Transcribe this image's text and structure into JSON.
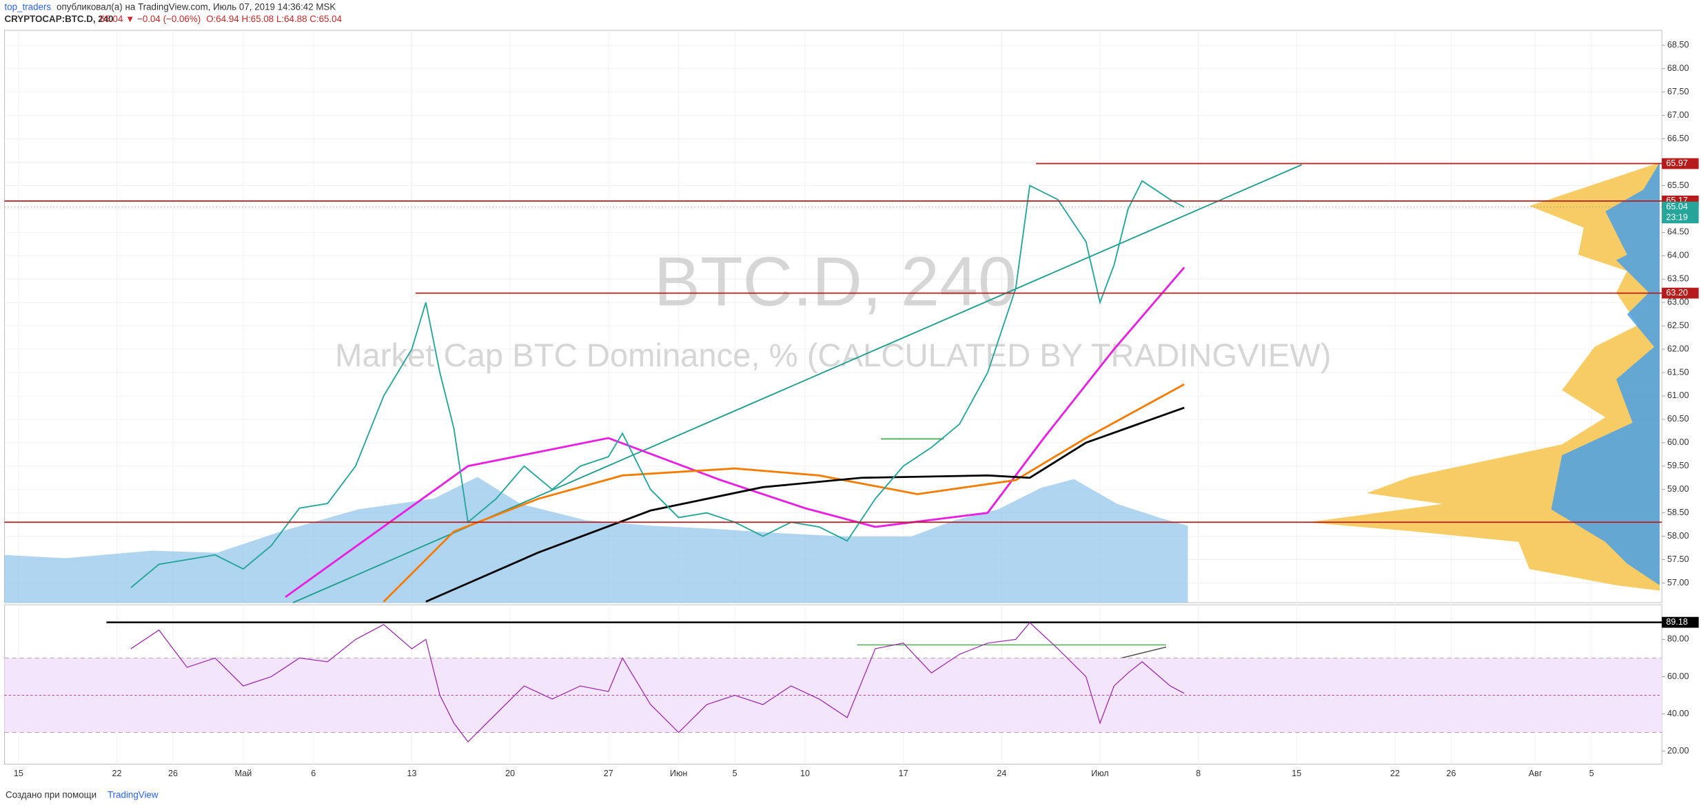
{
  "header": {
    "author": "top_traders",
    "published": "опубликовал(а) на TradingView.com, Июль 07, 2019 14:36:42 MSK",
    "symbol": "CRYPTOCAP:BTC.D, 240",
    "change": "65.04 ▼ −0.04 (−0.06%)",
    "ohlc": "O:64.94 H:65.08 L:64.88 C:65.04"
  },
  "footer": {
    "text": "Создано при помощи",
    "brand": "TradingView"
  },
  "chart_data": {
    "type": "line",
    "title": "BTC.D, 240",
    "subtitle": "Market Cap BTC Dominance, % (CALCULATED BY TRADINGVIEW)",
    "x": [
      "2019-04-23",
      "2019-04-25",
      "2019-04-27",
      "2019-04-29",
      "2019-05-01",
      "2019-05-03",
      "2019-05-05",
      "2019-05-07",
      "2019-05-09",
      "2019-05-11",
      "2019-05-13",
      "2019-05-14",
      "2019-05-15",
      "2019-05-16",
      "2019-05-17",
      "2019-05-19",
      "2019-05-21",
      "2019-05-23",
      "2019-05-25",
      "2019-05-27",
      "2019-05-28",
      "2019-05-30",
      "2019-06-01",
      "2019-06-03",
      "2019-06-05",
      "2019-06-07",
      "2019-06-09",
      "2019-06-11",
      "2019-06-13",
      "2019-06-15",
      "2019-06-17",
      "2019-06-19",
      "2019-06-21",
      "2019-06-23",
      "2019-06-25",
      "2019-06-26",
      "2019-06-28",
      "2019-06-30",
      "2019-07-01",
      "2019-07-02",
      "2019-07-03",
      "2019-07-04",
      "2019-07-06",
      "2019-07-07"
    ],
    "series": [
      {
        "color": "#26a69a",
        "values": [
          56.9,
          57.4,
          57.5,
          57.6,
          57.3,
          57.8,
          58.6,
          58.7,
          59.5,
          61.0,
          62.0,
          63.0,
          61.5,
          60.3,
          58.3,
          58.8,
          59.5,
          59.0,
          59.5,
          59.7,
          60.2,
          59.0,
          58.4,
          58.5,
          58.3,
          58.0,
          58.3,
          58.2,
          57.9,
          58.8,
          59.5,
          59.9,
          60.4,
          61.5,
          63.3,
          65.5,
          65.2,
          64.3,
          63.0,
          63.8,
          65.0,
          65.6,
          65.2,
          65.04
        ]
      }
    ],
    "averages": [
      {
        "color": "#e91ee3",
        "x": [
          "2019-05-04",
          "2019-05-17",
          "2019-05-27",
          "2019-06-04",
          "2019-06-10",
          "2019-06-15",
          "2019-06-23",
          "2019-06-27",
          "2019-07-02",
          "2019-07-07"
        ],
        "values": [
          56.7,
          59.5,
          60.1,
          59.2,
          58.6,
          58.2,
          58.5,
          60.1,
          62.0,
          63.75
        ]
      },
      {
        "color": "#f57c00",
        "x": [
          "2019-05-11",
          "2019-05-16",
          "2019-05-22",
          "2019-05-28",
          "2019-06-05",
          "2019-06-11",
          "2019-06-18",
          "2019-06-25",
          "2019-06-30",
          "2019-07-07"
        ],
        "values": [
          56.6,
          58.1,
          58.8,
          59.3,
          59.45,
          59.3,
          58.9,
          59.2,
          60.1,
          61.25
        ]
      },
      {
        "color": "#000000",
        "x": [
          "2019-05-14",
          "2019-05-22",
          "2019-05-30",
          "2019-06-07",
          "2019-06-14",
          "2019-06-23",
          "2019-06-26",
          "2019-06-30",
          "2019-07-07"
        ],
        "values": [
          56.6,
          57.65,
          58.55,
          59.05,
          59.25,
          59.3,
          59.25,
          60.0,
          60.75
        ]
      }
    ],
    "xlim": [
      "2019-04-14",
      "2019-08-10"
    ],
    "xticks": [
      {
        "value": "2019-04-15",
        "label": "15"
      },
      {
        "value": "2019-04-22",
        "label": "22"
      },
      {
        "value": "2019-04-26",
        "label": "26"
      },
      {
        "value": "2019-05-01",
        "label": "Май"
      },
      {
        "value": "2019-05-06",
        "label": "6"
      },
      {
        "value": "2019-05-13",
        "label": "13"
      },
      {
        "value": "2019-05-20",
        "label": "20"
      },
      {
        "value": "2019-05-27",
        "label": "27"
      },
      {
        "value": "2019-06-01",
        "label": "Июн"
      },
      {
        "value": "2019-06-05",
        "label": "5"
      },
      {
        "value": "2019-06-10",
        "label": "10"
      },
      {
        "value": "2019-06-17",
        "label": "17"
      },
      {
        "value": "2019-06-24",
        "label": "24"
      },
      {
        "value": "2019-07-01",
        "label": "Июл"
      },
      {
        "value": "2019-07-08",
        "label": "8"
      },
      {
        "value": "2019-07-15",
        "label": "15"
      },
      {
        "value": "2019-07-22",
        "label": "22"
      },
      {
        "value": "2019-07-26",
        "label": "26"
      },
      {
        "value": "2019-08-01",
        "label": "Авг"
      },
      {
        "value": "2019-08-05",
        "label": "5"
      }
    ],
    "ylim": [
      56.58,
      68.82
    ],
    "yticks": [
      {
        "value": 57,
        "label": "57.00"
      },
      {
        "value": 57.5,
        "label": "57.50"
      },
      {
        "value": 58,
        "label": "58.00"
      },
      {
        "value": 58.5,
        "label": "58.50"
      },
      {
        "value": 59,
        "label": "59.00"
      },
      {
        "value": 59.5,
        "label": "59.50"
      },
      {
        "value": 60,
        "label": "60.00"
      },
      {
        "value": 60.5,
        "label": "60.50"
      },
      {
        "value": 61,
        "label": "61.00"
      },
      {
        "value": 61.5,
        "label": "61.50"
      },
      {
        "value": 62,
        "label": "62.00"
      },
      {
        "value": 62.5,
        "label": "62.50"
      },
      {
        "value": 63,
        "label": "63.00"
      },
      {
        "value": 63.5,
        "label": "63.50"
      },
      {
        "value": 64,
        "label": "64.00"
      },
      {
        "value": 64.5,
        "label": "64.50"
      },
      {
        "value": 65,
        "label": "65.00"
      },
      {
        "value": 65.5,
        "label": "65.50"
      },
      {
        "value": 66,
        "label": "66.00"
      },
      {
        "value": 66.5,
        "label": "66.50"
      },
      {
        "value": 67,
        "label": "67.00"
      },
      {
        "value": 67.5,
        "label": "67.50"
      },
      {
        "value": 68,
        "label": "68.00"
      },
      {
        "value": 68.5,
        "label": "68.50"
      }
    ],
    "grid": true,
    "levels": {
      "color": "#b71c1c",
      "values": [
        65.97,
        65.17,
        63.2,
        58.3
      ],
      "value_labels": [
        "65.97",
        "65.17",
        "63.20",
        null
      ]
    },
    "last_value": 65.04,
    "last_color": "#26a69a",
    "countdown": "23:19",
    "rsi": {
      "color": "#9c27b0",
      "values": [
        75,
        85,
        65,
        70,
        55,
        60,
        70,
        68,
        80,
        88,
        75,
        80,
        50,
        35,
        25,
        40,
        55,
        48,
        55,
        52,
        70,
        45,
        30,
        45,
        50,
        45,
        55,
        48,
        38,
        75,
        78,
        62,
        72,
        78,
        80,
        89,
        75,
        60,
        35,
        55,
        62,
        68,
        55,
        51
      ],
      "ylim": [
        13,
        98.6
      ],
      "yticks": [
        {
          "value": 20,
          "label": "20.00"
        },
        {
          "value": 40,
          "label": "40.00"
        },
        {
          "value": 60,
          "label": "60.00"
        },
        {
          "value": 80,
          "label": "80.00"
        }
      ],
      "band": [
        30,
        70
      ],
      "mid": 50,
      "level": 89.18
    }
  }
}
